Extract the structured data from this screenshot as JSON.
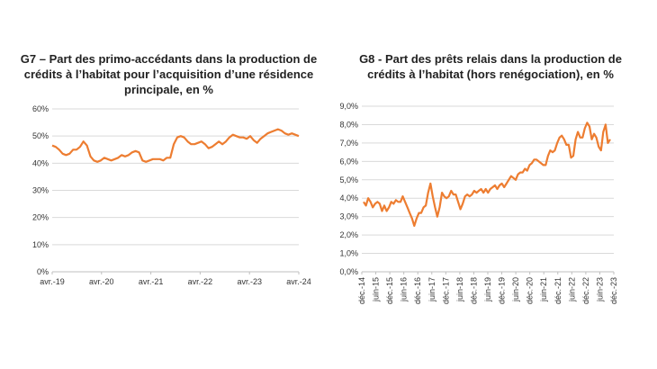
{
  "colors": {
    "line": "#ED7D31",
    "grid": "#D9D9D9",
    "axis": "#BFBFBF"
  },
  "chart_data": [
    {
      "type": "line",
      "title": "G7 – Part des primo-accédants dans la production de crédits à l’habitat pour l’acquisition d’une résidence principale, en %",
      "ylim": [
        0,
        60
      ],
      "y_ticks": [
        "0%",
        "10%",
        "20%",
        "30%",
        "40%",
        "50%",
        "60%"
      ],
      "x_ticks": [
        "avr.-19",
        "avr.-20",
        "avr.-21",
        "avr.-22",
        "avr.-23",
        "avr.-24"
      ],
      "grid": "horizontal",
      "series": [
        {
          "values": [
            46.5,
            46,
            45,
            43.5,
            43,
            43.5,
            45,
            45,
            46,
            48,
            46.5,
            42.5,
            41,
            40.5,
            41,
            42,
            41.5,
            41,
            41.5,
            42,
            43,
            42.5,
            43,
            44,
            44.5,
            44,
            41,
            40.5,
            41,
            41.5,
            41.5,
            41.5,
            41,
            42,
            42,
            47,
            49.5,
            50,
            49.5,
            48,
            47,
            47,
            47.5,
            48,
            47,
            45.5,
            46,
            47,
            48,
            47,
            48,
            49.5,
            50.5,
            50,
            49.5,
            49.5,
            49,
            50,
            48.5,
            47.5,
            49,
            50,
            51,
            51.5,
            52,
            52.5,
            52,
            51,
            50.5,
            51,
            50.5,
            50
          ]
        }
      ]
    },
    {
      "type": "line",
      "title": "G8 - Part des prêts relais dans la production de crédits à l’habitat (hors renégociation), en %",
      "ylim": [
        0,
        9
      ],
      "y_ticks": [
        "0,0%",
        "1,0%",
        "2,0%",
        "3,0%",
        "4,0%",
        "5,0%",
        "6,0%",
        "7,0%",
        "8,0%",
        "9,0%"
      ],
      "x_ticks": [
        "déc.-14",
        "juin-15",
        "déc.-15",
        "juin-16",
        "déc.-16",
        "juin-17",
        "déc.-17",
        "juin-18",
        "déc.-18",
        "juin-19",
        "déc.-19",
        "juin-20",
        "déc.-20",
        "juin-21",
        "déc.-21",
        "juin-22",
        "déc.-22",
        "juin-23",
        "déc.-23"
      ],
      "grid": "horizontal",
      "series": [
        {
          "values": [
            3.8,
            3.6,
            4.0,
            3.8,
            3.5,
            3.7,
            3.8,
            3.7,
            3.3,
            3.6,
            3.3,
            3.5,
            3.8,
            3.7,
            3.9,
            3.8,
            3.8,
            4.1,
            3.8,
            3.5,
            3.2,
            2.9,
            2.5,
            2.9,
            3.2,
            3.2,
            3.5,
            3.6,
            4.3,
            4.8,
            4.1,
            3.5,
            3.0,
            3.5,
            4.3,
            4.1,
            4.0,
            4.1,
            4.4,
            4.2,
            4.2,
            3.8,
            3.4,
            3.7,
            4.1,
            4.2,
            4.1,
            4.2,
            4.4,
            4.3,
            4.4,
            4.5,
            4.3,
            4.5,
            4.3,
            4.5,
            4.6,
            4.7,
            4.5,
            4.7,
            4.8,
            4.6,
            4.8,
            5.0,
            5.2,
            5.1,
            5.0,
            5.3,
            5.4,
            5.4,
            5.6,
            5.5,
            5.8,
            5.9,
            6.1,
            6.1,
            6.0,
            5.9,
            5.8,
            5.8,
            6.3,
            6.6,
            6.5,
            6.6,
            7.0,
            7.3,
            7.4,
            7.2,
            6.9,
            6.9,
            6.2,
            6.3,
            7.2,
            7.6,
            7.3,
            7.3,
            7.8,
            8.1,
            7.9,
            7.2,
            7.5,
            7.3,
            6.8,
            6.6,
            7.6,
            8.0,
            7.0,
            7.2
          ]
        }
      ]
    }
  ]
}
